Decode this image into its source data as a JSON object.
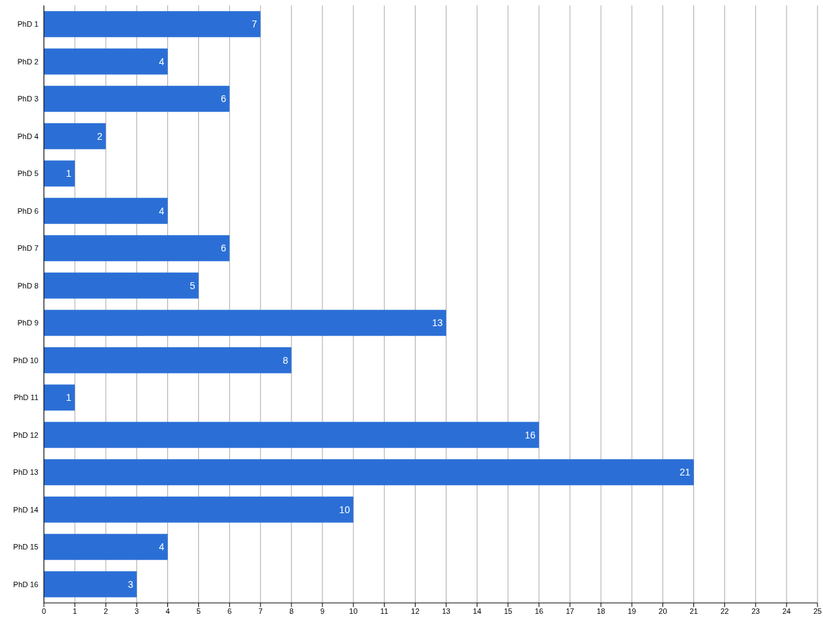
{
  "chart_data": {
    "type": "bar",
    "orientation": "horizontal",
    "categories": [
      "PhD 1",
      "PhD 2",
      "PhD 3",
      "PhD 4",
      "PhD 5",
      "PhD 6",
      "PhD 7",
      "PhD 8",
      "PhD 9",
      "PhD 10",
      "PhD 11",
      "PhD 12",
      "PhD 13",
      "PhD 14",
      "PhD 15",
      "PhD 16"
    ],
    "values": [
      7,
      4,
      6,
      2,
      1,
      4,
      6,
      5,
      13,
      8,
      1,
      16,
      21,
      10,
      4,
      3
    ],
    "color": "#2b6fd6",
    "xlim": [
      0,
      25
    ],
    "xticks": [
      0,
      1,
      2,
      3,
      4,
      5,
      6,
      7,
      8,
      9,
      10,
      11,
      12,
      13,
      14,
      15,
      16,
      17,
      18,
      19,
      20,
      21,
      22,
      23,
      24,
      25
    ],
    "grid": "x",
    "data_labels": true
  }
}
